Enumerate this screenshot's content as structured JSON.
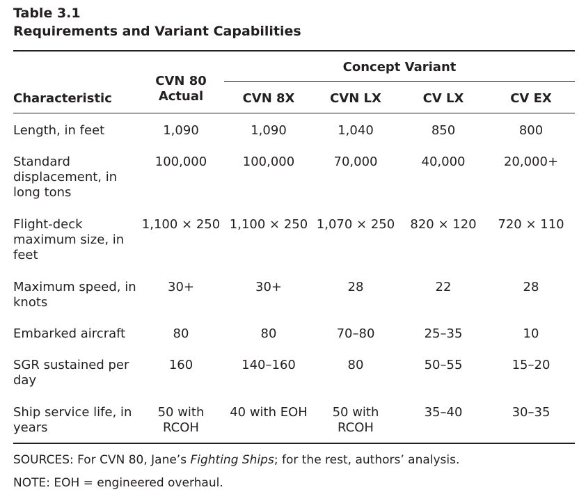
{
  "table": {
    "number": "Table 3.1",
    "title": "Requirements and Variant Capabilities",
    "group_header": "Concept Variant",
    "characteristic_header": "Characteristic",
    "columns": [
      "CVN 80\nActual",
      "CVN 8X",
      "CVN LX",
      "CV LX",
      "CV EX"
    ],
    "rows": [
      {
        "label": "Length, in feet",
        "values": [
          "1,090",
          "1,090",
          "1,040",
          "850",
          "800"
        ]
      },
      {
        "label": "Standard displacement, in long tons",
        "values": [
          "100,000",
          "100,000",
          "70,000",
          "40,000",
          "20,000+"
        ]
      },
      {
        "label": "Flight-deck maximum size, in feet",
        "values": [
          "1,100 × 250",
          "1,100 × 250",
          "1,070 × 250",
          "820 × 120",
          "720 × 110"
        ]
      },
      {
        "label": "Maximum speed, in knots",
        "values": [
          "30+",
          "30+",
          "28",
          "22",
          "28"
        ]
      },
      {
        "label": "Embarked aircraft",
        "values": [
          "80",
          "80",
          "70–80",
          "25–35",
          "10"
        ]
      },
      {
        "label": "SGR sustained per day",
        "values": [
          "160",
          "140–160",
          "80",
          "50–55",
          "15–20"
        ]
      },
      {
        "label": "Ship service life, in years",
        "values": [
          "50 with\nRCOH",
          "40 with EOH",
          "50 with\nRCOH",
          "35–40",
          "30–35"
        ]
      }
    ]
  },
  "notes": {
    "sources_prefix": "SOURCES: For CVN 80, Jane’s ",
    "sources_italic": "Fighting Ships",
    "sources_suffix": "; for the rest, authors’ analysis.",
    "note": "NOTE: EOH = engineered overhaul."
  }
}
